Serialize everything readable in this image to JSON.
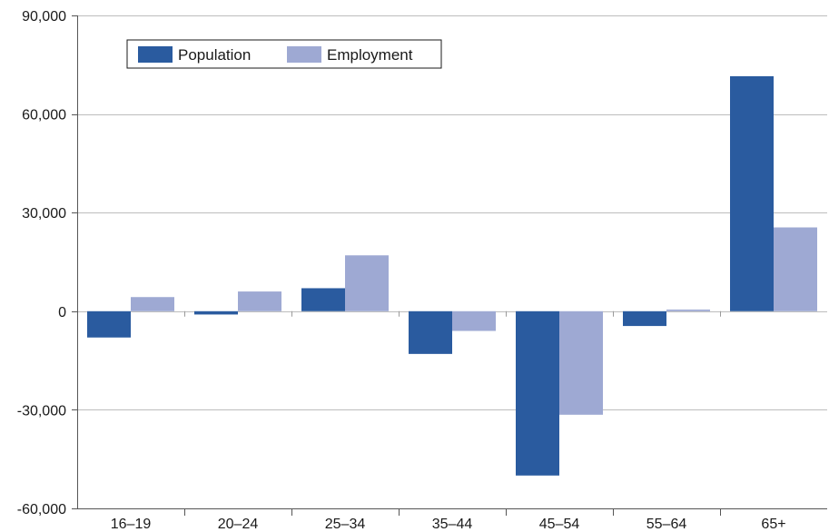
{
  "chart_data": {
    "type": "bar",
    "categories": [
      "16–19",
      "20–24",
      "25–34",
      "35–44",
      "45–54",
      "55–64",
      "65+"
    ],
    "series": [
      {
        "name": "Population",
        "color": "#2a5b9f",
        "values": [
          -8000,
          -1000,
          7000,
          -13000,
          -50000,
          -4500,
          71500
        ]
      },
      {
        "name": "Employment",
        "color": "#9ea9d3",
        "values": [
          4300,
          6000,
          17000,
          -6000,
          -31500,
          500,
          25500
        ]
      }
    ],
    "ylim": [
      -60000,
      90000
    ],
    "yticks": [
      -60000,
      -30000,
      0,
      30000,
      60000,
      90000
    ],
    "ytick_labels": [
      "-60,000",
      "-30,000",
      "0",
      "30,000",
      "60,000",
      "90,000"
    ],
    "grid": true,
    "legend": {
      "position": "top-left",
      "items": [
        "Population",
        "Employment"
      ]
    },
    "title": "",
    "xlabel": "",
    "ylabel": ""
  }
}
